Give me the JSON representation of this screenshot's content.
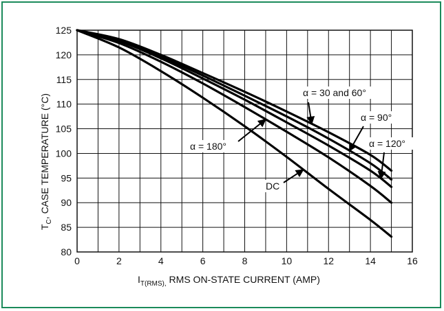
{
  "chart_data": {
    "type": "line",
    "xlabel_main": "I",
    "xlabel_sub": "T(RMS),",
    "xlabel_rest": " RMS ON-STATE CURRENT (AMP)",
    "ylabel_main": "T",
    "ylabel_sub": "C",
    "ylabel_rest": ", CASE TEMPERATURE (°C)",
    "xlim": [
      0,
      16
    ],
    "ylim": [
      80,
      125
    ],
    "xticks": [
      "0",
      "2",
      "4",
      "6",
      "8",
      "10",
      "12",
      "14",
      "16"
    ],
    "yticks": [
      "80",
      "85",
      "90",
      "95",
      "100",
      "105",
      "110",
      "115",
      "120",
      "125"
    ],
    "grid": true,
    "series": [
      {
        "name": "α = 30 and 60°",
        "x": [
          0,
          2,
          4,
          6,
          8,
          10,
          12,
          14,
          15
        ],
        "y": [
          125,
          123.2,
          120,
          116.3,
          112.5,
          108.5,
          104.3,
          99.7,
          96.5
        ]
      },
      {
        "name": "α = 90°",
        "x": [
          0,
          2,
          4,
          6,
          8,
          10,
          12,
          14,
          15
        ],
        "y": [
          125,
          123,
          119.6,
          115.8,
          111.7,
          107.5,
          103,
          98,
          94.7
        ]
      },
      {
        "name": "α = 120°",
        "x": [
          0,
          2,
          4,
          6,
          8,
          10,
          12,
          14,
          15
        ],
        "y": [
          125,
          122.8,
          119.3,
          115.2,
          110.9,
          106.3,
          101.6,
          96.5,
          93.2
        ]
      },
      {
        "name": "α = 180°",
        "x": [
          0,
          2,
          4,
          6,
          8,
          10,
          12,
          14,
          15
        ],
        "y": [
          125,
          122.4,
          118.6,
          114.2,
          109.4,
          104.4,
          99.2,
          93.4,
          90
        ]
      },
      {
        "name": "DC",
        "x": [
          0,
          2,
          4,
          6,
          8,
          10,
          12,
          14,
          15
        ],
        "y": [
          125,
          121.5,
          116.7,
          111.3,
          105.5,
          99.3,
          92.8,
          86.5,
          83.1
        ]
      }
    ],
    "annotations": [
      {
        "text": "α = 30 and 60°",
        "series": 0
      },
      {
        "text": "α = 90°",
        "series": 1
      },
      {
        "text": "α = 120°",
        "series": 2
      },
      {
        "text": "α = 180°",
        "series": 3
      },
      {
        "text": "DC",
        "series": 4
      }
    ]
  }
}
